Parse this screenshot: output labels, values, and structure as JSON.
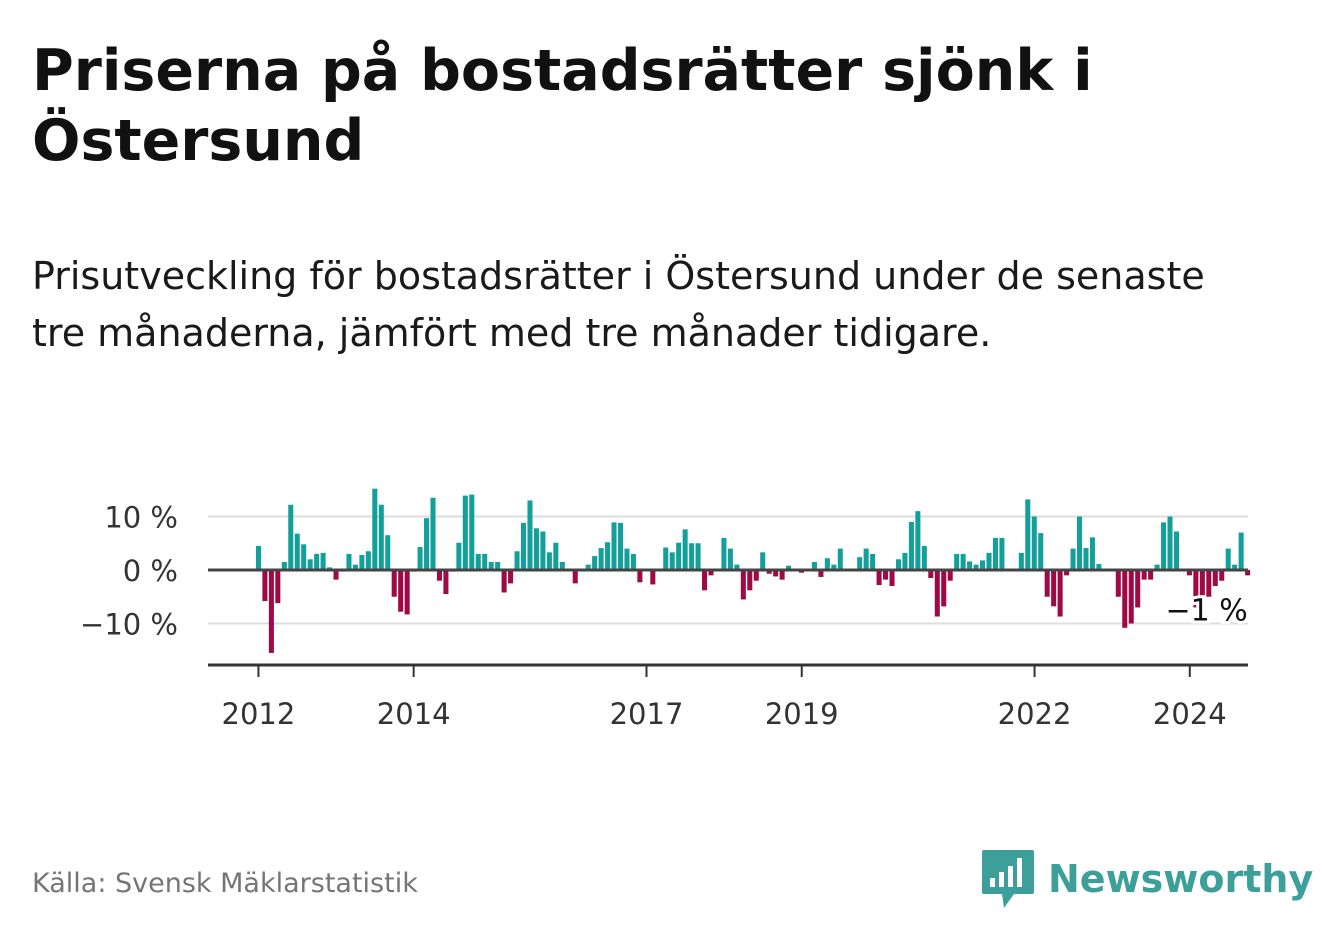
{
  "header": {
    "title": "Priserna på bostadsrätter sjönk i Östersund",
    "subtitle": "Prisutveckling för bostadsrätter i Östersund under de senaste tre månaderna, jämfört med tre månader tidigare."
  },
  "footer": {
    "source": "Källa: Svensk Mäklarstatistik",
    "brand": "Newsworthy",
    "brand_icon": "bar-chart-speech-bubble-icon"
  },
  "colors": {
    "positive": "#13a09a",
    "negative": "#9e0a45",
    "zero_line": "#444444",
    "grid": "#dddddd",
    "brand": "#3d9f9a"
  },
  "chart_data": {
    "type": "bar",
    "title": "Priserna på bostadsrätter sjönk i Östersund",
    "xlabel": "",
    "ylabel": "",
    "y_unit": "%",
    "ylim": [
      -17,
      18
    ],
    "yticks": [
      {
        "value": 10,
        "label": "10 %"
      },
      {
        "value": 0,
        "label": "0 %"
      },
      {
        "value": -10,
        "label": "−10 %"
      }
    ],
    "grid": true,
    "x_start": 2012.0,
    "x_step": 0.0833,
    "xlim": [
      2011.35,
      2024.75
    ],
    "xticks": [
      {
        "value": 2012,
        "label": "2012"
      },
      {
        "value": 2014,
        "label": "2014"
      },
      {
        "value": 2017,
        "label": "2017"
      },
      {
        "value": 2019,
        "label": "2019"
      },
      {
        "value": 2022,
        "label": "2022"
      },
      {
        "value": 2024,
        "label": "2024"
      }
    ],
    "values": [
      4.5,
      -5.8,
      -15.5,
      -6.2,
      1.5,
      12.2,
      6.8,
      4.8,
      2,
      3,
      3.2,
      0.5,
      -1.8,
      -0.3,
      3,
      1,
      2.8,
      3.5,
      15.2,
      12.2,
      6.5,
      -5,
      -7.8,
      -8.3,
      -0.3,
      4.3,
      9.7,
      13.5,
      -2,
      -4.5,
      -0.3,
      5.1,
      13.9,
      14.1,
      3,
      3,
      1.5,
      1.5,
      -4.2,
      -2.5,
      3.5,
      8.8,
      13,
      7.8,
      7.2,
      3.3,
      5.1,
      1.5,
      0,
      -2.5,
      0,
      1,
      2.6,
      4.1,
      5.2,
      8.9,
      8.8,
      4,
      3,
      -2.3,
      0,
      -2.7,
      0,
      4.2,
      3.3,
      5.1,
      7.6,
      5,
      5,
      -3.8,
      -1,
      0,
      6,
      4,
      1,
      -5.5,
      -3.8,
      -2,
      3.3,
      -0.7,
      -1.2,
      -1.8,
      0.8,
      0,
      -0.5,
      0,
      1.5,
      -1.3,
      2.2,
      1,
      4,
      0,
      0,
      2.4,
      4,
      3,
      -2.8,
      -1.8,
      -3,
      2,
      3.2,
      9,
      11,
      4.5,
      -1.5,
      -8.7,
      -6.8,
      -2,
      3,
      3,
      1.6,
      1,
      1.8,
      3.2,
      6,
      6,
      0,
      0,
      3.2,
      13.2,
      10,
      6.9,
      -5,
      -6.8,
      -8.7,
      -1,
      4,
      10,
      4.1,
      6.1,
      1.1,
      0,
      0,
      -5,
      -10.8,
      -10,
      -7,
      -1.8,
      -1.8,
      1,
      8.9,
      10,
      7.2,
      0,
      -1,
      -7,
      -5,
      -5,
      -3,
      -2,
      4,
      1,
      7,
      -1
    ],
    "annotations": [
      {
        "text": "−1 %",
        "x": 2024.1,
        "y": -1
      }
    ]
  }
}
